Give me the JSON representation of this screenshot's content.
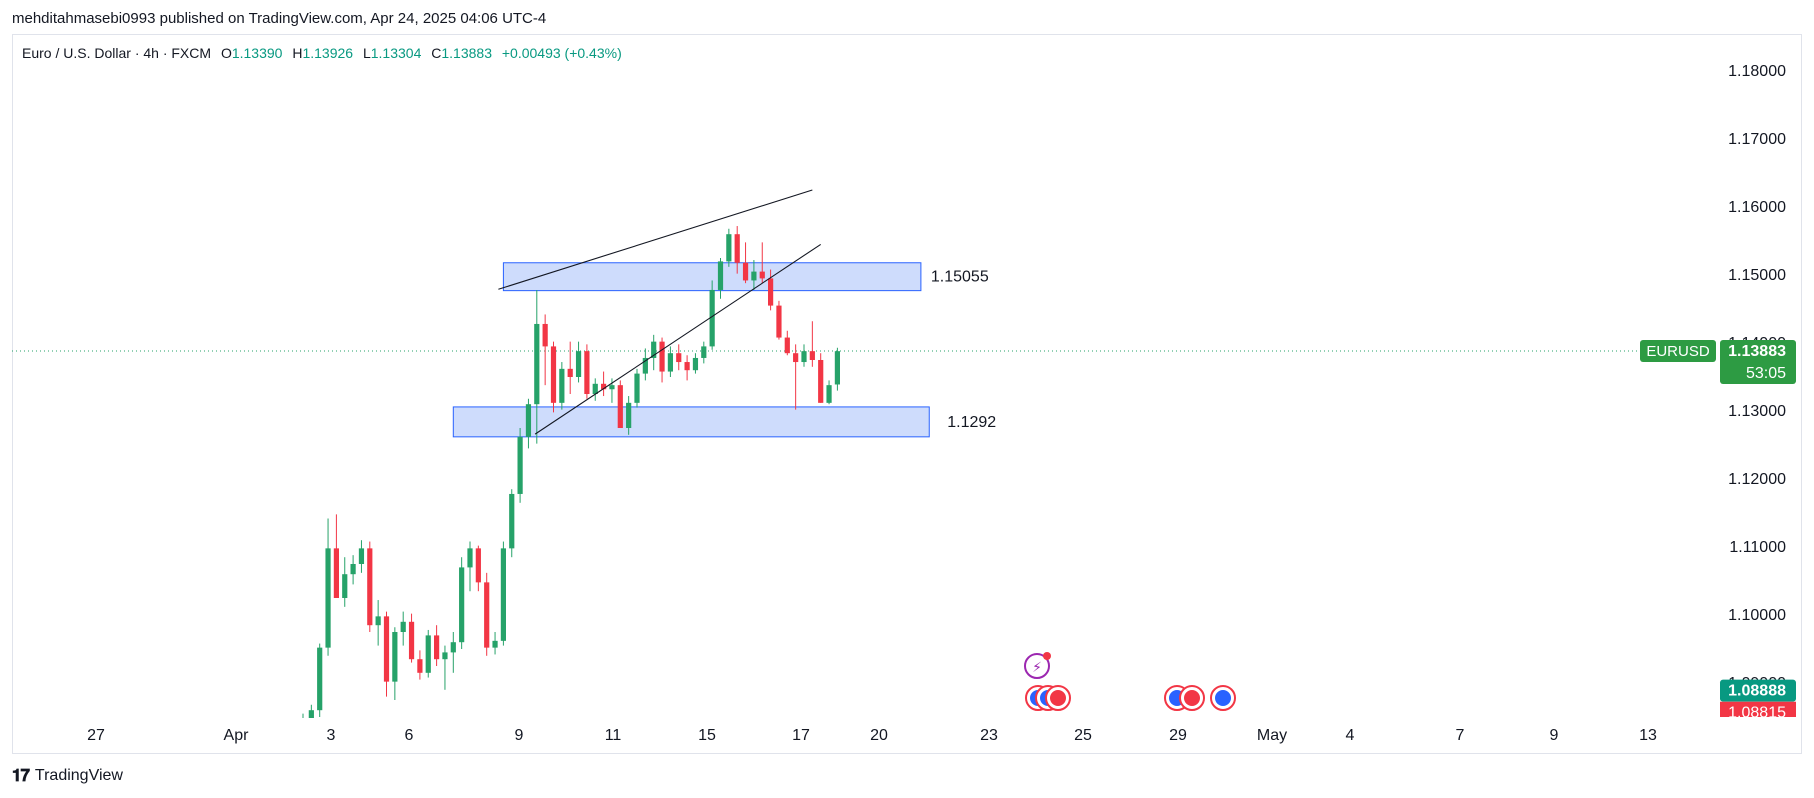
{
  "header": {
    "publisher_line": "mehditahmasebi0993 published on TradingView.com, Apr 24, 2025 04:06 UTC-4"
  },
  "legend": {
    "symbol": "Euro / U.S. Dollar · 4h · FXCM",
    "open_label": "O",
    "open_value": "1.13390",
    "high_label": "H",
    "high_value": "1.13926",
    "low_label": "L",
    "low_value": "1.13304",
    "close_label": "C",
    "close_value": "1.13883",
    "change": "+0.00493 (+0.43%)"
  },
  "footer": {
    "brand": "TradingView"
  },
  "colors": {
    "up": "#089981",
    "up_candle": "#26a269",
    "down": "#f23645",
    "zone_fill": "#c5d6fb",
    "zone_stroke": "#2962ff",
    "price_tag": "#2d9b43"
  },
  "chart_data": {
    "type": "candlestick",
    "symbol": "EURUSD",
    "timeframe": "4h",
    "ylim": [
      1.0815,
      1.1855
    ],
    "y_ticks": [
      "1.18000",
      "1.17000",
      "1.16000",
      "1.15000",
      "1.14000",
      "1.13000",
      "1.12000",
      "1.11000",
      "1.10000",
      "1.09000"
    ],
    "x_ticks": [
      "27",
      "Apr",
      "3",
      "6",
      "9",
      "11",
      "15",
      "17",
      "20",
      "23",
      "25",
      "29",
      "May",
      "4",
      "7",
      "9",
      "13"
    ],
    "last_price": {
      "symbol_label": "EURUSD",
      "price": "1.13883",
      "countdown": "53:05",
      "value": 1.13883
    },
    "secondary_price": {
      "price": "1.08888",
      "value": 1.08888,
      "next_price": "1.08815"
    },
    "zones": [
      {
        "label": "1.15055",
        "top": 1.1518,
        "bottom": 1.1477,
        "from": 24,
        "to": 74
      },
      {
        "label": "1.1292",
        "top": 1.1306,
        "bottom": 1.1262,
        "from": 18,
        "to": 75
      }
    ],
    "trendlines": [
      {
        "from": [
          23.4,
          1.1479
        ],
        "to": [
          61,
          1.1625
        ]
      },
      {
        "from": [
          27.8,
          1.1266
        ],
        "to": [
          62,
          1.1545
        ]
      }
    ],
    "candles": [
      [
        1.0815,
        1.0855,
        1.0812,
        1.0838
      ],
      [
        1.0838,
        1.0868,
        1.082,
        1.086
      ],
      [
        1.086,
        1.0958,
        1.085,
        1.0952
      ],
      [
        1.0952,
        1.1142,
        1.094,
        1.1098
      ],
      [
        1.1098,
        1.1148,
        1.1025,
        1.1025
      ],
      [
        1.1025,
        1.1085,
        1.1012,
        1.106
      ],
      [
        1.106,
        1.1088,
        1.1045,
        1.1075
      ],
      [
        1.1075,
        1.111,
        1.1062,
        1.1098
      ],
      [
        1.1098,
        1.1108,
        1.0975,
        1.0985
      ],
      [
        1.0985,
        1.1022,
        1.0955,
        1.0998
      ],
      [
        1.0998,
        1.1005,
        1.088,
        1.0902
      ],
      [
        1.0902,
        1.0982,
        1.0875,
        1.0975
      ],
      [
        1.0975,
        1.1005,
        1.0955,
        1.099
      ],
      [
        1.099,
        1.1002,
        1.093,
        1.0935
      ],
      [
        1.0935,
        1.0948,
        1.0905,
        1.0915
      ],
      [
        1.0915,
        1.0978,
        1.0908,
        1.097
      ],
      [
        1.097,
        1.0985,
        1.0925,
        1.0935
      ],
      [
        1.0935,
        1.0955,
        1.089,
        1.0945
      ],
      [
        1.0945,
        1.0975,
        1.0915,
        1.096
      ],
      [
        1.096,
        1.1085,
        1.095,
        1.107
      ],
      [
        1.107,
        1.1108,
        1.1035,
        1.1098
      ],
      [
        1.1098,
        1.1102,
        1.1035,
        1.1048
      ],
      [
        1.1048,
        1.1062,
        1.094,
        1.0952
      ],
      [
        1.0952,
        1.0975,
        1.0942,
        1.0962
      ],
      [
        1.0962,
        1.1108,
        1.0955,
        1.1098
      ],
      [
        1.1098,
        1.1185,
        1.1085,
        1.1178
      ],
      [
        1.1178,
        1.1275,
        1.1165,
        1.1262
      ],
      [
        1.1262,
        1.1318,
        1.1245,
        1.131
      ],
      [
        1.131,
        1.1478,
        1.1252,
        1.1428
      ],
      [
        1.1428,
        1.1442,
        1.1338,
        1.1395
      ],
      [
        1.1395,
        1.1402,
        1.1298,
        1.1312
      ],
      [
        1.1312,
        1.1372,
        1.1302,
        1.1362
      ],
      [
        1.1362,
        1.1402,
        1.1325,
        1.135
      ],
      [
        1.135,
        1.1402,
        1.1342,
        1.1388
      ],
      [
        1.1388,
        1.1398,
        1.1318,
        1.1325
      ],
      [
        1.1325,
        1.1348,
        1.1315,
        1.134
      ],
      [
        1.134,
        1.1358,
        1.1322,
        1.1332
      ],
      [
        1.1332,
        1.1348,
        1.1312,
        1.1338
      ],
      [
        1.1338,
        1.1345,
        1.1275,
        1.1275
      ],
      [
        1.1275,
        1.1322,
        1.1265,
        1.1312
      ],
      [
        1.1312,
        1.1362,
        1.1305,
        1.1355
      ],
      [
        1.1355,
        1.1392,
        1.1345,
        1.1378
      ],
      [
        1.1378,
        1.1412,
        1.136,
        1.1402
      ],
      [
        1.1402,
        1.1408,
        1.1342,
        1.1358
      ],
      [
        1.1358,
        1.1395,
        1.135,
        1.1385
      ],
      [
        1.1385,
        1.1398,
        1.136,
        1.1372
      ],
      [
        1.1372,
        1.1382,
        1.1345,
        1.136
      ],
      [
        1.136,
        1.1385,
        1.1355,
        1.1378
      ],
      [
        1.1378,
        1.1402,
        1.137,
        1.1395
      ],
      [
        1.1395,
        1.1492,
        1.139,
        1.1478
      ],
      [
        1.1478,
        1.1525,
        1.1465,
        1.152
      ],
      [
        1.152,
        1.1568,
        1.1512,
        1.156
      ],
      [
        1.156,
        1.1572,
        1.1502,
        1.1518
      ],
      [
        1.1518,
        1.1548,
        1.1488,
        1.1492
      ],
      [
        1.1492,
        1.1522,
        1.1478,
        1.1505
      ],
      [
        1.1505,
        1.1548,
        1.1488,
        1.1495
      ],
      [
        1.1495,
        1.1508,
        1.1448,
        1.1455
      ],
      [
        1.1455,
        1.1462,
        1.1405,
        1.1408
      ],
      [
        1.1408,
        1.1418,
        1.1382,
        1.1385
      ],
      [
        1.1385,
        1.1398,
        1.1302,
        1.1372
      ],
      [
        1.1372,
        1.1398,
        1.1365,
        1.1388
      ],
      [
        1.1388,
        1.1432,
        1.1365,
        1.1375
      ],
      [
        1.1375,
        1.1385,
        1.1312,
        1.1312
      ],
      [
        1.1312,
        1.1345,
        1.131,
        1.1338
      ],
      [
        1.1339,
        1.1393,
        1.133,
        1.1388
      ]
    ]
  }
}
